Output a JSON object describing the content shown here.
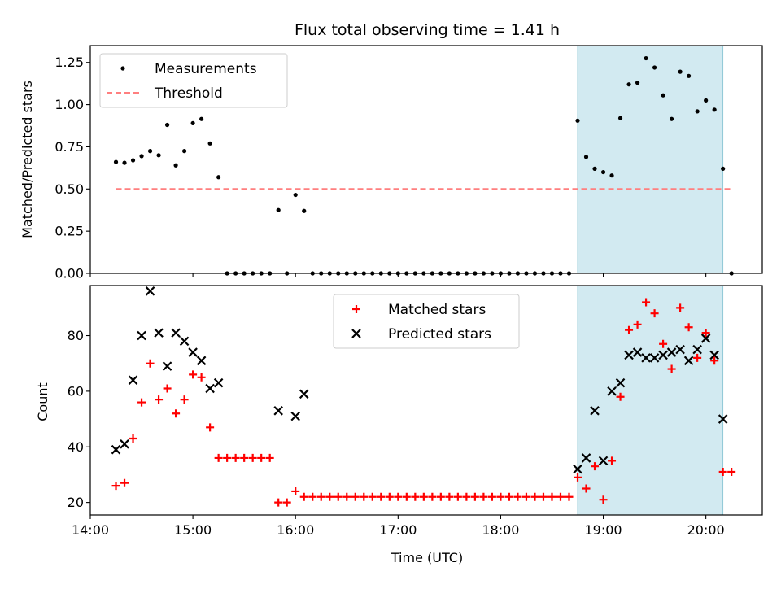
{
  "colors": {
    "measurement": "#000000",
    "threshold": "#ff7f7f",
    "matched": "#ff0000",
    "predicted": "#000000",
    "highlight": "#add8e6"
  },
  "chart_data": [
    {
      "type": "scatter",
      "title": "Flux total observing time = 1.41 h",
      "xlabel": "",
      "ylabel": "Matched/Predicted stars",
      "xlim": [
        "14:00",
        "20:33"
      ],
      "ylim": [
        0,
        1.35
      ],
      "yticks": [
        "0.00",
        "0.25",
        "0.50",
        "0.75",
        "1.00",
        "1.25"
      ],
      "highlight_span": [
        "18:45",
        "20:10"
      ],
      "legend_position": "upper left",
      "series": [
        {
          "name": "Measurements",
          "style": "dot",
          "points": [
            [
              "14:15",
              0.66
            ],
            [
              "14:20",
              0.655
            ],
            [
              "14:25",
              0.67
            ],
            [
              "14:30",
              0.695
            ],
            [
              "14:35",
              0.725
            ],
            [
              "14:40",
              0.7
            ],
            [
              "14:45",
              0.88
            ],
            [
              "14:50",
              0.64
            ],
            [
              "14:55",
              0.725
            ],
            [
              "15:00",
              0.89
            ],
            [
              "15:05",
              0.915
            ],
            [
              "15:10",
              0.77
            ],
            [
              "15:15",
              0.57
            ],
            [
              "15:20",
              0.0
            ],
            [
              "15:25",
              0.0
            ],
            [
              "15:30",
              0.0
            ],
            [
              "15:35",
              0.0
            ],
            [
              "15:40",
              0.0
            ],
            [
              "15:45",
              0.0
            ],
            [
              "15:50",
              0.375
            ],
            [
              "15:55",
              0.0
            ],
            [
              "16:00",
              0.465
            ],
            [
              "16:05",
              0.37
            ],
            [
              "16:10",
              0.0
            ],
            [
              "16:15",
              0.0
            ],
            [
              "16:20",
              0.0
            ],
            [
              "16:25",
              0.0
            ],
            [
              "16:30",
              0.0
            ],
            [
              "16:35",
              0.0
            ],
            [
              "16:40",
              0.0
            ],
            [
              "16:45",
              0.0
            ],
            [
              "16:50",
              0.0
            ],
            [
              "16:55",
              0.0
            ],
            [
              "17:00",
              0.0
            ],
            [
              "17:05",
              0.0
            ],
            [
              "17:10",
              0.0
            ],
            [
              "17:15",
              0.0
            ],
            [
              "17:20",
              0.0
            ],
            [
              "17:25",
              0.0
            ],
            [
              "17:30",
              0.0
            ],
            [
              "17:35",
              0.0
            ],
            [
              "17:40",
              0.0
            ],
            [
              "17:45",
              0.0
            ],
            [
              "17:50",
              0.0
            ],
            [
              "17:55",
              0.0
            ],
            [
              "18:00",
              0.0
            ],
            [
              "18:05",
              0.0
            ],
            [
              "18:10",
              0.0
            ],
            [
              "18:15",
              0.0
            ],
            [
              "18:20",
              0.0
            ],
            [
              "18:25",
              0.0
            ],
            [
              "18:30",
              0.0
            ],
            [
              "18:35",
              0.0
            ],
            [
              "18:40",
              0.0
            ],
            [
              "18:45",
              0.905
            ],
            [
              "18:50",
              0.69
            ],
            [
              "18:55",
              0.62
            ],
            [
              "19:00",
              0.6
            ],
            [
              "19:05",
              0.58
            ],
            [
              "19:10",
              0.92
            ],
            [
              "19:15",
              1.12
            ],
            [
              "19:20",
              1.13
            ],
            [
              "19:25",
              1.275
            ],
            [
              "19:30",
              1.22
            ],
            [
              "19:35",
              1.055
            ],
            [
              "19:40",
              0.915
            ],
            [
              "19:45",
              1.195
            ],
            [
              "19:50",
              1.17
            ],
            [
              "19:55",
              0.96
            ],
            [
              "20:00",
              1.025
            ],
            [
              "20:05",
              0.97
            ],
            [
              "20:10",
              0.62
            ],
            [
              "20:15",
              0.0
            ]
          ]
        },
        {
          "name": "Threshold",
          "style": "dashed-line",
          "points": [
            [
              "14:15",
              0.5
            ],
            [
              "20:15",
              0.5
            ]
          ]
        }
      ]
    },
    {
      "type": "scatter",
      "title": "",
      "xlabel": "Time (UTC)",
      "ylabel": "Count",
      "xlim": [
        "14:00",
        "20:33"
      ],
      "ylim": [
        15.5,
        98
      ],
      "xticks": [
        "14:00",
        "15:00",
        "16:00",
        "17:00",
        "18:00",
        "19:00",
        "20:00"
      ],
      "yticks": [
        "20",
        "40",
        "60",
        "80"
      ],
      "highlight_span": [
        "18:45",
        "20:10"
      ],
      "legend_position": "upper center",
      "series": [
        {
          "name": "Matched stars",
          "marker": "plus",
          "points": [
            [
              "14:15",
              26
            ],
            [
              "14:20",
              27
            ],
            [
              "14:25",
              43
            ],
            [
              "14:30",
              56
            ],
            [
              "14:35",
              70
            ],
            [
              "14:40",
              57
            ],
            [
              "14:45",
              61
            ],
            [
              "14:50",
              52
            ],
            [
              "14:55",
              57
            ],
            [
              "15:00",
              66
            ],
            [
              "15:05",
              65
            ],
            [
              "15:10",
              47
            ],
            [
              "15:15",
              36
            ],
            [
              "15:20",
              36
            ],
            [
              "15:25",
              36
            ],
            [
              "15:30",
              36
            ],
            [
              "15:35",
              36
            ],
            [
              "15:40",
              36
            ],
            [
              "15:45",
              36
            ],
            [
              "15:50",
              20
            ],
            [
              "15:55",
              20
            ],
            [
              "16:00",
              24
            ],
            [
              "16:05",
              22
            ],
            [
              "16:10",
              22
            ],
            [
              "16:15",
              22
            ],
            [
              "16:20",
              22
            ],
            [
              "16:25",
              22
            ],
            [
              "16:30",
              22
            ],
            [
              "16:35",
              22
            ],
            [
              "16:40",
              22
            ],
            [
              "16:45",
              22
            ],
            [
              "16:50",
              22
            ],
            [
              "16:55",
              22
            ],
            [
              "17:00",
              22
            ],
            [
              "17:05",
              22
            ],
            [
              "17:10",
              22
            ],
            [
              "17:15",
              22
            ],
            [
              "17:20",
              22
            ],
            [
              "17:25",
              22
            ],
            [
              "17:30",
              22
            ],
            [
              "17:35",
              22
            ],
            [
              "17:40",
              22
            ],
            [
              "17:45",
              22
            ],
            [
              "17:50",
              22
            ],
            [
              "17:55",
              22
            ],
            [
              "18:00",
              22
            ],
            [
              "18:05",
              22
            ],
            [
              "18:10",
              22
            ],
            [
              "18:15",
              22
            ],
            [
              "18:20",
              22
            ],
            [
              "18:25",
              22
            ],
            [
              "18:30",
              22
            ],
            [
              "18:35",
              22
            ],
            [
              "18:40",
              22
            ],
            [
              "18:45",
              29
            ],
            [
              "18:50",
              25
            ],
            [
              "18:55",
              33
            ],
            [
              "19:00",
              21
            ],
            [
              "19:05",
              35
            ],
            [
              "19:10",
              58
            ],
            [
              "19:15",
              82
            ],
            [
              "19:20",
              84
            ],
            [
              "19:25",
              92
            ],
            [
              "19:30",
              88
            ],
            [
              "19:35",
              77
            ],
            [
              "19:40",
              68
            ],
            [
              "19:45",
              90
            ],
            [
              "19:50",
              83
            ],
            [
              "19:55",
              72
            ],
            [
              "20:00",
              81
            ],
            [
              "20:05",
              71
            ],
            [
              "20:10",
              31
            ],
            [
              "20:15",
              31
            ]
          ]
        },
        {
          "name": "Predicted stars",
          "marker": "x",
          "points": [
            [
              "14:15",
              39
            ],
            [
              "14:20",
              41
            ],
            [
              "14:25",
              64
            ],
            [
              "14:30",
              80
            ],
            [
              "14:35",
              96
            ],
            [
              "14:40",
              81
            ],
            [
              "14:45",
              69
            ],
            [
              "14:50",
              81
            ],
            [
              "14:55",
              78
            ],
            [
              "15:00",
              74
            ],
            [
              "15:05",
              71
            ],
            [
              "15:10",
              61
            ],
            [
              "15:15",
              63
            ],
            [
              "15:50",
              53
            ],
            [
              "16:00",
              51
            ],
            [
              "16:05",
              59
            ],
            [
              "18:45",
              32
            ],
            [
              "18:50",
              36
            ],
            [
              "18:55",
              53
            ],
            [
              "19:00",
              35
            ],
            [
              "19:05",
              60
            ],
            [
              "19:10",
              63
            ],
            [
              "19:15",
              73
            ],
            [
              "19:20",
              74
            ],
            [
              "19:25",
              72
            ],
            [
              "19:30",
              72
            ],
            [
              "19:35",
              73
            ],
            [
              "19:40",
              74
            ],
            [
              "19:45",
              75
            ],
            [
              "19:50",
              71
            ],
            [
              "19:55",
              75
            ],
            [
              "20:00",
              79
            ],
            [
              "20:05",
              73
            ],
            [
              "20:10",
              50
            ]
          ]
        }
      ]
    }
  ]
}
